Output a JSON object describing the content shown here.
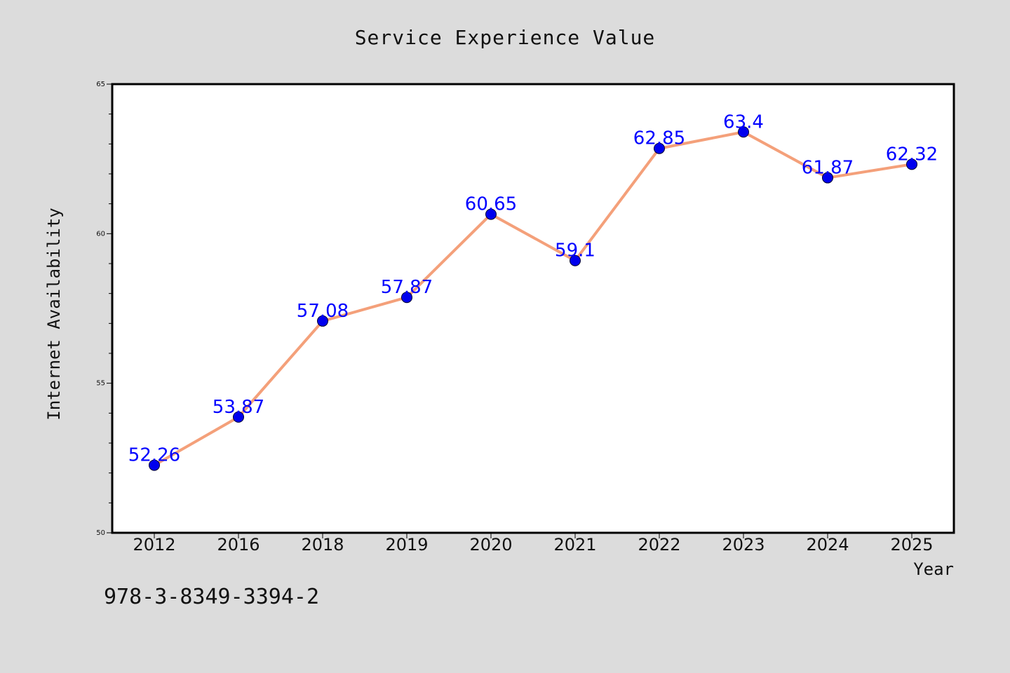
{
  "chart_data": {
    "type": "line",
    "title": "Service Experience Value",
    "xlabel": "Year",
    "ylabel": "Internet Availability",
    "categories": [
      "2012",
      "2016",
      "2018",
      "2019",
      "2020",
      "2021",
      "2022",
      "2023",
      "2024",
      "2025"
    ],
    "series": [
      {
        "values": [
          52.26,
          53.87,
          57.08,
          57.87,
          60.65,
          59.1,
          62.85,
          63.4,
          61.87,
          62.32
        ],
        "data_labels": [
          "52.26",
          "53.87",
          "57.08",
          "57.87",
          "60.65",
          "59.1",
          "62.85",
          "63.4",
          "61.87",
          "62.32"
        ],
        "line_color": "#f4a07a",
        "marker_color": "#0000ee",
        "label_color": "#0000ff"
      }
    ],
    "ylim": [
      50,
      65
    ],
    "yticks": [
      "50",
      "55",
      "60",
      "65"
    ],
    "grid": false,
    "legend": "none",
    "background_color": "#dcdcdc",
    "plot_background_color": "#ffffff"
  },
  "footer": {
    "isbn": "978-3-8349-3394-2"
  }
}
